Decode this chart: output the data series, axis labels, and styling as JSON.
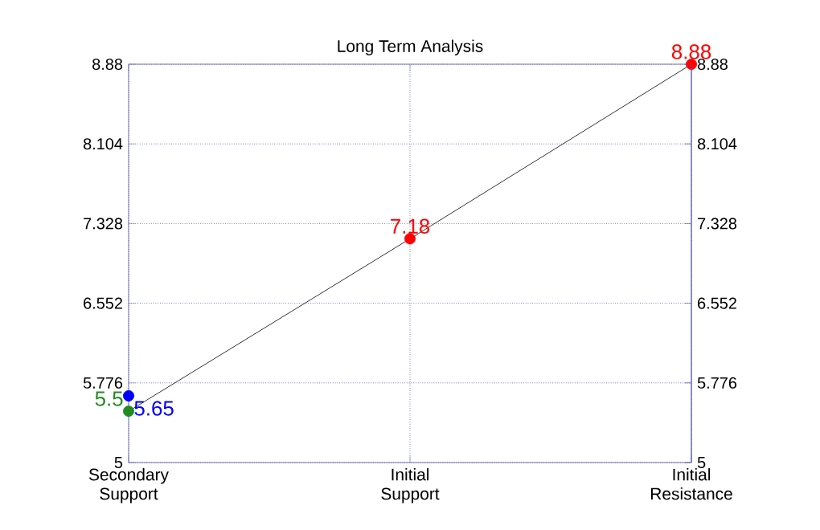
{
  "chart_data": {
    "type": "line",
    "title": "Long Term Analysis",
    "categories": [
      "Secondary Support",
      "Initial Support",
      "Initial Resistance"
    ],
    "ylim": [
      5,
      8.88
    ],
    "yticks": [
      5,
      5.776,
      6.552,
      7.328,
      8.104,
      8.88
    ],
    "y2lim": [
      5,
      8.88
    ],
    "y2ticks": [
      5,
      5.776,
      6.552,
      7.328,
      8.104,
      8.88
    ],
    "series": [
      {
        "color": "#000000",
        "colors": [
          "#228b22",
          "#ff0000",
          "#ff0000"
        ],
        "values": [
          5.5,
          7.18,
          8.88
        ]
      },
      {
        "type": "scatter",
        "x": [
          "Secondary Support"
        ],
        "color": "#0000ff",
        "values": [
          5.65
        ]
      }
    ],
    "data_labels": true,
    "grid": true,
    "marker": "circle",
    "line_style": "solid"
  }
}
